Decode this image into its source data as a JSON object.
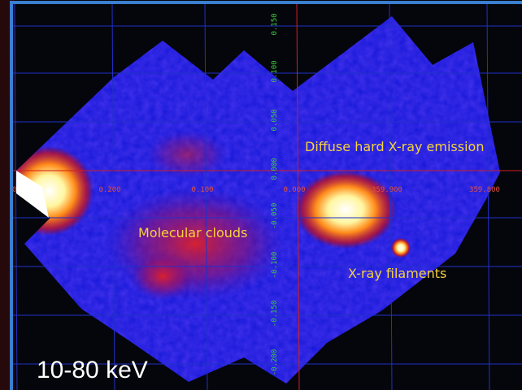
{
  "annotations": {
    "diffuse": "Diffuse hard X-ray emission",
    "clouds": "Molecular clouds",
    "filaments": "X-ray filaments",
    "band": "10-80 keV"
  },
  "grid_labels": {
    "latitude": [
      "0.150",
      "0.100",
      "0.050",
      "0.000",
      "-0.050",
      "-0.100",
      "-0.150",
      "-0.200"
    ],
    "longitude": [
      "0",
      "0.200",
      "0.100",
      "0.000",
      "359.900",
      "359.800"
    ]
  }
}
